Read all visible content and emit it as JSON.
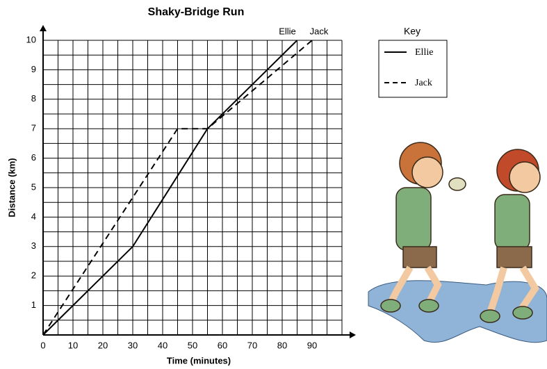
{
  "chart_data": {
    "type": "line",
    "title": "Shaky-Bridge Run",
    "x_label": "Time (minutes)",
    "y_label": "Distance (km)",
    "xlim": [
      0,
      100
    ],
    "ylim": [
      0,
      10
    ],
    "xticks": [
      0,
      10,
      20,
      30,
      40,
      50,
      60,
      70,
      80,
      90
    ],
    "yticks": [
      1,
      2,
      3,
      4,
      5,
      6,
      7,
      8,
      9,
      10
    ],
    "xgrid": [
      0,
      5,
      10,
      15,
      20,
      25,
      30,
      35,
      40,
      45,
      50,
      55,
      60,
      65,
      70,
      75,
      80,
      85,
      90,
      95,
      100
    ],
    "ygrid": [
      0,
      0.5,
      1,
      1.5,
      2,
      2.5,
      3,
      3.5,
      4,
      4.5,
      5,
      5.5,
      6,
      6.5,
      7,
      7.5,
      8,
      8.5,
      9,
      9.5,
      10
    ],
    "grid": true,
    "legend_title": "Key",
    "legend": "upper-right",
    "series": [
      {
        "name": "Ellie",
        "color": "#000000",
        "dashed": false,
        "x": [
          0,
          30,
          55,
          85
        ],
        "values": [
          0,
          3,
          7,
          10
        ]
      },
      {
        "name": "Jack",
        "color": "#000000",
        "dashed": true,
        "x": [
          0,
          45,
          55,
          90
        ],
        "values": [
          0,
          7,
          7,
          10
        ]
      }
    ]
  }
}
